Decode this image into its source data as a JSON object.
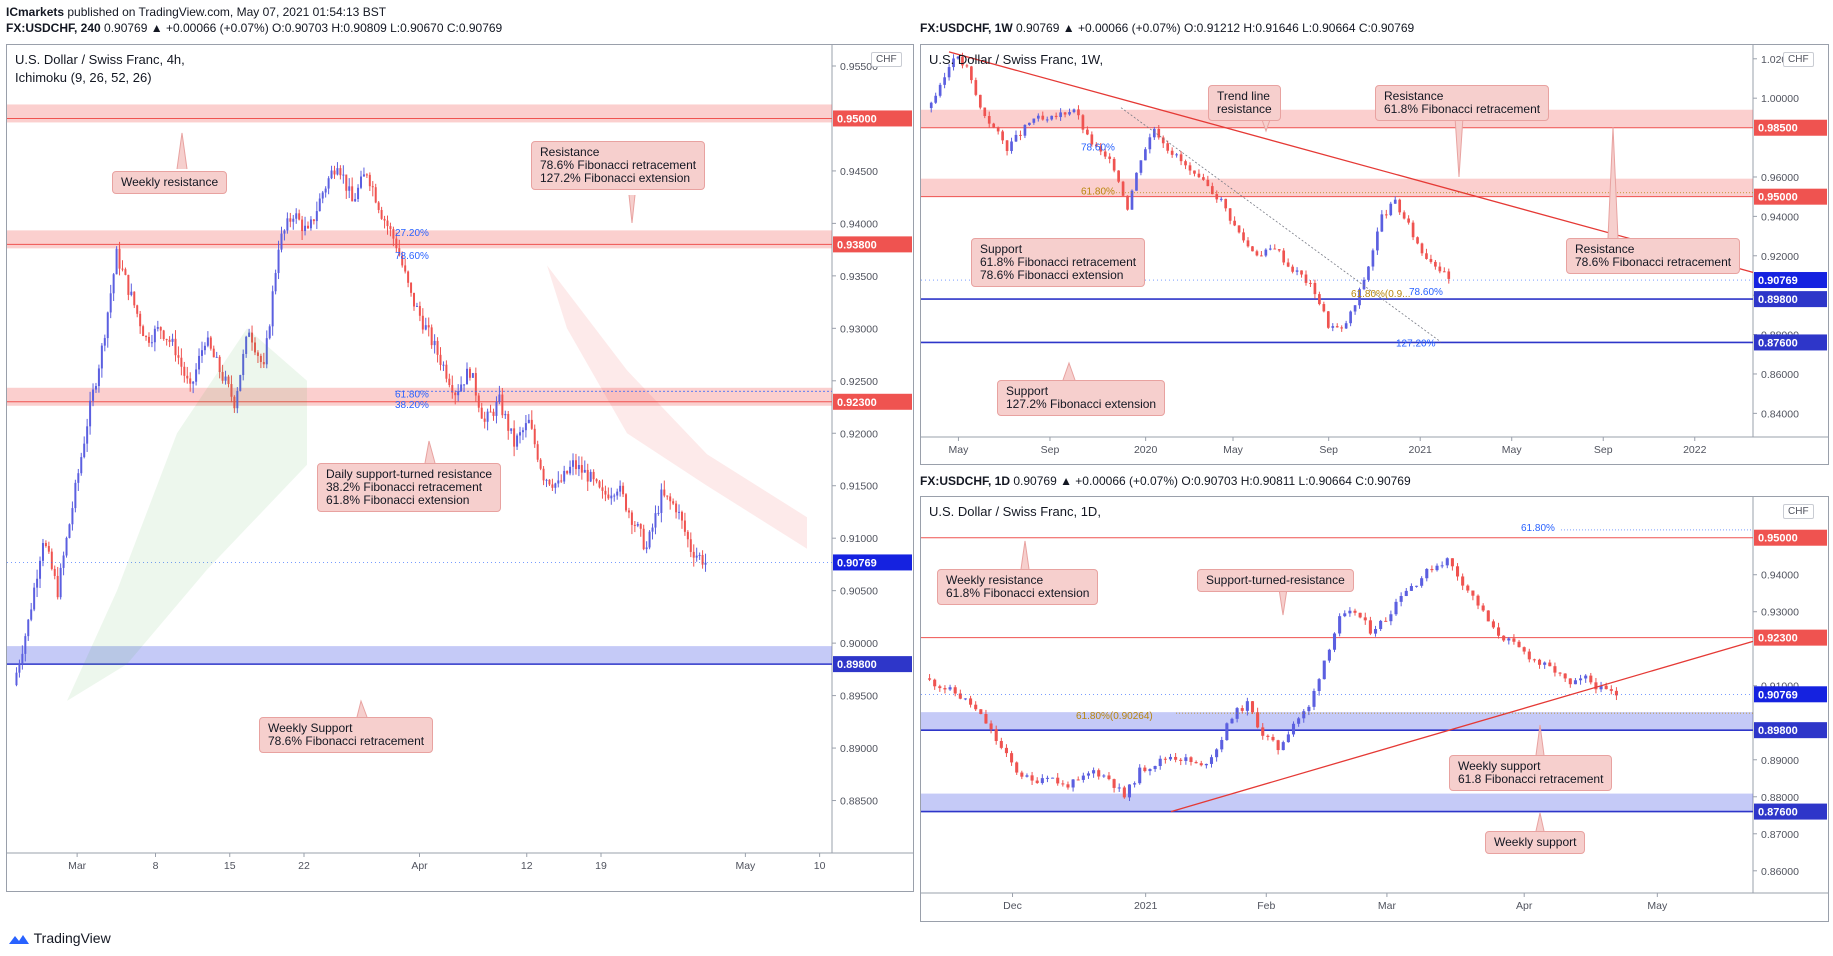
{
  "header": {
    "publisher": "ICmarkets",
    "published_text": "published on TradingView.com, May 07, 2021 01:54:13 BST",
    "left_symbol": "FX:USDCHF, 240",
    "left_quote": "0.90769 ▲ +0.00066 (+0.07%) O:0.90703 H:0.90809 L:0.90670 C:0.90769",
    "right_symbol": "FX:USDCHF, 1W",
    "right_quote": "0.90769 ▲ +0.00066 (+0.07%) O:0.91212 H:0.91646 L:0.90664 C:0.90769",
    "bottom_symbol": "FX:USDCHF, 1D",
    "bottom_quote": "0.90769 ▲ +0.00066 (+0.07%) O:0.90703 H:0.90811 L:0.90664 C:0.90769"
  },
  "footer": {
    "brand": "TradingView"
  },
  "colors": {
    "up": "#26a69a",
    "candle_up": "#5b5fe0",
    "candle_down": "#ef5350",
    "resistance": "#ef5350",
    "support": "#2e36c9"
  },
  "chart_data": [
    {
      "type": "candlestick",
      "id": "h4",
      "title": "U.S. Dollar / Swiss Franc, 4h,",
      "subtitle": "Ichimoku (9, 26, 52, 26)",
      "currency": "CHF",
      "ylim": [
        0.88,
        0.957
      ],
      "yticks": [
        "0.95500",
        "0.94500",
        "0.94000",
        "0.93500",
        "0.93000",
        "0.92500",
        "0.92000",
        "0.91500",
        "0.91000",
        "0.90500",
        "0.90000",
        "0.89500",
        "0.89000",
        "0.88500"
      ],
      "ytick_values": [
        0.955,
        0.945,
        0.94,
        0.935,
        0.93,
        0.925,
        0.92,
        0.915,
        0.91,
        0.905,
        0.9,
        0.895,
        0.89,
        0.885
      ],
      "xticks": [
        "Mar",
        "8",
        "15",
        "22",
        "Apr",
        "12",
        "19",
        "May",
        "10"
      ],
      "xtick_pos": [
        0.085,
        0.18,
        0.27,
        0.36,
        0.5,
        0.63,
        0.72,
        0.895,
        0.985
      ],
      "path": [
        0.896,
        0.902,
        0.91,
        0.905,
        0.913,
        0.921,
        0.928,
        0.937,
        0.933,
        0.929,
        0.93,
        0.928,
        0.924,
        0.929,
        0.926,
        0.923,
        0.93,
        0.926,
        0.938,
        0.941,
        0.939,
        0.943,
        0.946,
        0.942,
        0.945,
        0.941,
        0.938,
        0.933,
        0.93,
        0.927,
        0.924,
        0.926,
        0.921,
        0.923,
        0.919,
        0.921,
        0.916,
        0.915,
        0.917,
        0.916,
        0.914,
        0.915,
        0.912,
        0.909,
        0.914,
        0.913,
        0.909,
        0.9077
      ],
      "levels": [
        {
          "label": "0.95000",
          "value": 0.95,
          "kind": "resistance"
        },
        {
          "label": "0.93800",
          "value": 0.938,
          "kind": "resistance"
        },
        {
          "label": "0.92300",
          "value": 0.923,
          "kind": "resistance"
        },
        {
          "label": "0.89800",
          "value": 0.898,
          "kind": "support"
        }
      ],
      "current": {
        "label": "0.90769",
        "value": 0.90769
      },
      "fib_labels": [
        "27.20%",
        "78.60%",
        "61.80%",
        "38.20%"
      ],
      "callouts": [
        "Weekly resistance",
        "Resistance\n78.6% Fibonacci retracement\n127.2% Fibonacci extension",
        "Daily support-turned resistance\n38.2% Fibonacci retracement\n61.8% Fibonacci extension",
        "Weekly Support\n78.6% Fibonacci retracement"
      ]
    },
    {
      "type": "candlestick",
      "id": "w1",
      "title": "U.S. Dollar / Swiss Franc, 1W,",
      "currency": "CHF",
      "ylim": [
        0.828,
        1.027
      ],
      "yticks": [
        "1.02000",
        "1.00000",
        "0.96000",
        "0.94000",
        "0.92000",
        "0.90000",
        "0.88000",
        "0.86000",
        "0.84000"
      ],
      "ytick_values": [
        1.02,
        1.0,
        0.96,
        0.94,
        0.92,
        0.9,
        0.88,
        0.86,
        0.84
      ],
      "xticks": [
        "May",
        "Sep",
        "2020",
        "May",
        "Sep",
        "2021",
        "May",
        "Sep",
        "2022"
      ],
      "xtick_pos": [
        0.045,
        0.155,
        0.27,
        0.375,
        0.49,
        0.6,
        0.71,
        0.82,
        0.93
      ],
      "path": [
        0.995,
        1.005,
        1.022,
        1.015,
        0.995,
        0.985,
        0.975,
        0.982,
        0.99,
        0.988,
        0.992,
        0.995,
        0.98,
        0.972,
        0.965,
        0.945,
        0.97,
        0.985,
        0.975,
        0.968,
        0.96,
        0.955,
        0.948,
        0.935,
        0.925,
        0.92,
        0.925,
        0.915,
        0.91,
        0.902,
        0.885,
        0.882,
        0.895,
        0.915,
        0.94,
        0.947,
        0.935,
        0.922,
        0.916,
        0.9077
      ],
      "levels": [
        {
          "label": "0.98500",
          "value": 0.985,
          "kind": "resistance"
        },
        {
          "label": "0.95000",
          "value": 0.95,
          "kind": "resistance"
        },
        {
          "label": "0.89800",
          "value": 0.898,
          "kind": "support"
        },
        {
          "label": "0.87600",
          "value": 0.876,
          "kind": "support"
        }
      ],
      "current": {
        "label": "0.90769",
        "value": 0.90769
      },
      "fib_labels": [
        "78.60%",
        "61.80%",
        "61.80%(0.9...",
        "78.60%",
        "127.20%"
      ],
      "callouts": [
        "Trend line\nresistance",
        "Resistance\n61.8% Fibonacci retracement",
        "Support\n61.8% Fibonacci retracement\n78.6% Fibonacci extension",
        "Resistance\n78.6% Fibonacci retracement",
        "Support\n127.2% Fibonacci extension"
      ]
    },
    {
      "type": "candlestick",
      "id": "d1",
      "title": "U.S. Dollar / Swiss Franc, 1D,",
      "currency": "CHF",
      "ylim": [
        0.854,
        0.961
      ],
      "yticks": [
        "0.94000",
        "0.93000",
        "0.91000",
        "0.89000",
        "0.88000",
        "0.87000",
        "0.86000"
      ],
      "ytick_values": [
        0.94,
        0.93,
        0.91,
        0.89,
        0.88,
        0.87,
        0.86
      ],
      "xticks": [
        "Dec",
        "2021",
        "Feb",
        "Mar",
        "Apr",
        "May"
      ],
      "xtick_pos": [
        0.11,
        0.27,
        0.415,
        0.56,
        0.725,
        0.885
      ],
      "path": [
        0.912,
        0.91,
        0.908,
        0.905,
        0.9,
        0.893,
        0.887,
        0.884,
        0.886,
        0.883,
        0.884,
        0.887,
        0.885,
        0.88,
        0.887,
        0.889,
        0.891,
        0.89,
        0.888,
        0.893,
        0.902,
        0.905,
        0.897,
        0.893,
        0.9,
        0.904,
        0.917,
        0.928,
        0.93,
        0.925,
        0.928,
        0.935,
        0.938,
        0.942,
        0.944,
        0.938,
        0.932,
        0.925,
        0.922,
        0.919,
        0.916,
        0.914,
        0.91,
        0.912,
        0.909,
        0.9077
      ],
      "levels": [
        {
          "label": "0.95000",
          "value": 0.95,
          "kind": "resistance"
        },
        {
          "label": "0.92300",
          "value": 0.923,
          "kind": "resistance"
        },
        {
          "label": "0.89800",
          "value": 0.898,
          "kind": "support"
        },
        {
          "label": "0.87600",
          "value": 0.876,
          "kind": "support"
        }
      ],
      "current": {
        "label": "0.90769",
        "value": 0.90769
      },
      "fib_labels": [
        "61.80%",
        "61.80%(0.90264)"
      ],
      "callouts": [
        "Weekly resistance\n61.8% Fibonacci extension",
        "Support-turned-resistance",
        "Weekly support\n61.8 Fibonacci retracement",
        "Weekly support"
      ]
    }
  ]
}
